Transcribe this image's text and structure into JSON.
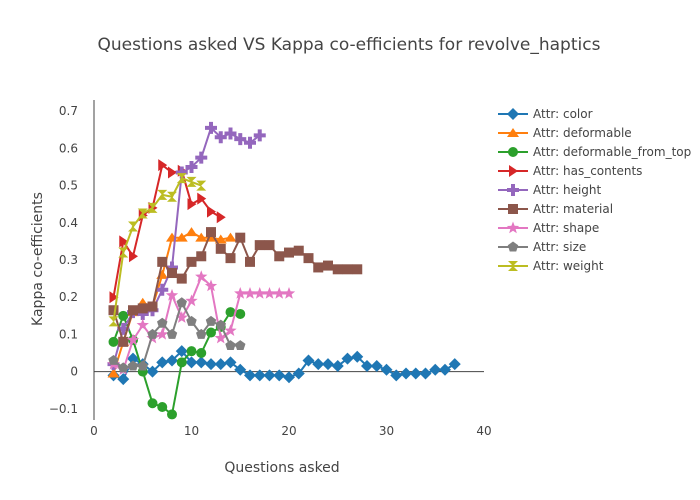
{
  "chart_data": {
    "type": "line",
    "title": "Questions asked VS Kappa co-efficients for revolve_haptics",
    "xlabel": "Questions asked",
    "ylabel": "Kappa co-efficients",
    "xlim": [
      0,
      40
    ],
    "ylim": [
      -0.13,
      0.73
    ],
    "xticks": [
      0,
      10,
      20,
      30,
      40
    ],
    "yticks": [
      -0.1,
      0,
      0.1,
      0.2,
      0.3,
      0.4,
      0.5,
      0.6,
      0.7
    ],
    "grid": false,
    "legend_position": "right",
    "series": [
      {
        "name": "Attr: color",
        "color": "#1f77b4",
        "marker": "diamond",
        "x": [
          2,
          3,
          4,
          5,
          6,
          7,
          8,
          9,
          10,
          11,
          12,
          13,
          14,
          15,
          16,
          17,
          18,
          19,
          20,
          21,
          22,
          23,
          24,
          25,
          26,
          27,
          28,
          29,
          30,
          31,
          32,
          33,
          34,
          35,
          36,
          37
        ],
        "y": [
          -0.01,
          -0.02,
          0.035,
          0.02,
          0.0,
          0.025,
          0.03,
          0.055,
          0.025,
          0.025,
          0.02,
          0.02,
          0.025,
          0.005,
          -0.01,
          -0.01,
          -0.01,
          -0.01,
          -0.015,
          -0.005,
          0.03,
          0.02,
          0.02,
          0.015,
          0.035,
          0.04,
          0.015,
          0.015,
          0.005,
          -0.01,
          -0.005,
          -0.005,
          -0.005,
          0.005,
          0.005,
          0.02
        ]
      },
      {
        "name": "Attr: deformable",
        "color": "#ff7f0e",
        "marker": "triangle-up",
        "x": [
          2,
          3,
          4,
          5,
          6,
          7,
          8,
          9,
          10,
          11,
          12,
          13,
          14
        ],
        "y": [
          -0.005,
          0.08,
          0.16,
          0.185,
          0.175,
          0.26,
          0.36,
          0.36,
          0.375,
          0.36,
          0.36,
          0.355,
          0.36
        ]
      },
      {
        "name": "Attr: deformable_from_top",
        "color": "#2ca02c",
        "marker": "circle",
        "x": [
          2,
          3,
          4,
          5,
          6,
          7,
          8,
          9,
          10,
          11,
          12,
          13,
          14,
          15
        ],
        "y": [
          0.08,
          0.15,
          0.085,
          0.0,
          -0.085,
          -0.095,
          -0.115,
          0.025,
          0.055,
          0.05,
          0.105,
          0.12,
          0.16,
          0.155
        ]
      },
      {
        "name": "Attr: has_contents",
        "color": "#d62728",
        "marker": "triangle-right",
        "x": [
          2,
          3,
          4,
          5,
          6,
          7,
          8,
          9,
          10,
          11,
          12,
          13
        ],
        "y": [
          0.2,
          0.35,
          0.31,
          0.42,
          0.44,
          0.555,
          0.535,
          0.54,
          0.45,
          0.465,
          0.43,
          0.415
        ]
      },
      {
        "name": "Attr: height",
        "color": "#9467bd",
        "marker": "cross",
        "x": [
          2,
          3,
          4,
          5,
          6,
          7,
          8,
          9,
          10,
          11,
          12,
          13,
          14,
          15,
          16,
          17
        ],
        "y": [
          0.02,
          0.115,
          0.16,
          0.155,
          0.165,
          0.22,
          0.28,
          0.535,
          0.55,
          0.575,
          0.655,
          0.63,
          0.64,
          0.625,
          0.615,
          0.635
        ]
      },
      {
        "name": "Attr: material",
        "color": "#8c564b",
        "marker": "square",
        "x": [
          2,
          3,
          4,
          5,
          6,
          7,
          8,
          9,
          10,
          11,
          12,
          13,
          14,
          15,
          16,
          17,
          18,
          19,
          20,
          21,
          22,
          23,
          24,
          25,
          26,
          27
        ],
        "y": [
          0.165,
          0.08,
          0.165,
          0.17,
          0.175,
          0.295,
          0.265,
          0.25,
          0.295,
          0.31,
          0.375,
          0.33,
          0.305,
          0.36,
          0.295,
          0.34,
          0.34,
          0.31,
          0.32,
          0.325,
          0.305,
          0.28,
          0.285,
          0.275,
          0.275,
          0.275
        ]
      },
      {
        "name": "Attr: shape",
        "color": "#e377c2",
        "marker": "star",
        "x": [
          2,
          3,
          4,
          5,
          6,
          7,
          8,
          9,
          10,
          11,
          12,
          13,
          14,
          15,
          16,
          17,
          18,
          19,
          20
        ],
        "y": [
          0.02,
          0.005,
          0.085,
          0.125,
          0.09,
          0.1,
          0.205,
          0.145,
          0.19,
          0.255,
          0.23,
          0.09,
          0.11,
          0.21,
          0.21,
          0.21,
          0.21,
          0.21,
          0.21
        ]
      },
      {
        "name": "Attr: size",
        "color": "#7f7f7f",
        "marker": "pentagon",
        "x": [
          2,
          3,
          4,
          5,
          6,
          7,
          8,
          9,
          10,
          11,
          12,
          13,
          14,
          15
        ],
        "y": [
          0.03,
          0.01,
          0.015,
          0.015,
          0.1,
          0.13,
          0.1,
          0.185,
          0.135,
          0.1,
          0.135,
          0.125,
          0.07,
          0.07
        ]
      },
      {
        "name": "Attr: weight",
        "color": "#bcbd22",
        "marker": "hourglass",
        "x": [
          2,
          3,
          4,
          5,
          6,
          7,
          8,
          9,
          10,
          11
        ],
        "y": [
          0.135,
          0.32,
          0.39,
          0.425,
          0.44,
          0.475,
          0.47,
          0.52,
          0.51,
          0.5
        ]
      }
    ]
  }
}
